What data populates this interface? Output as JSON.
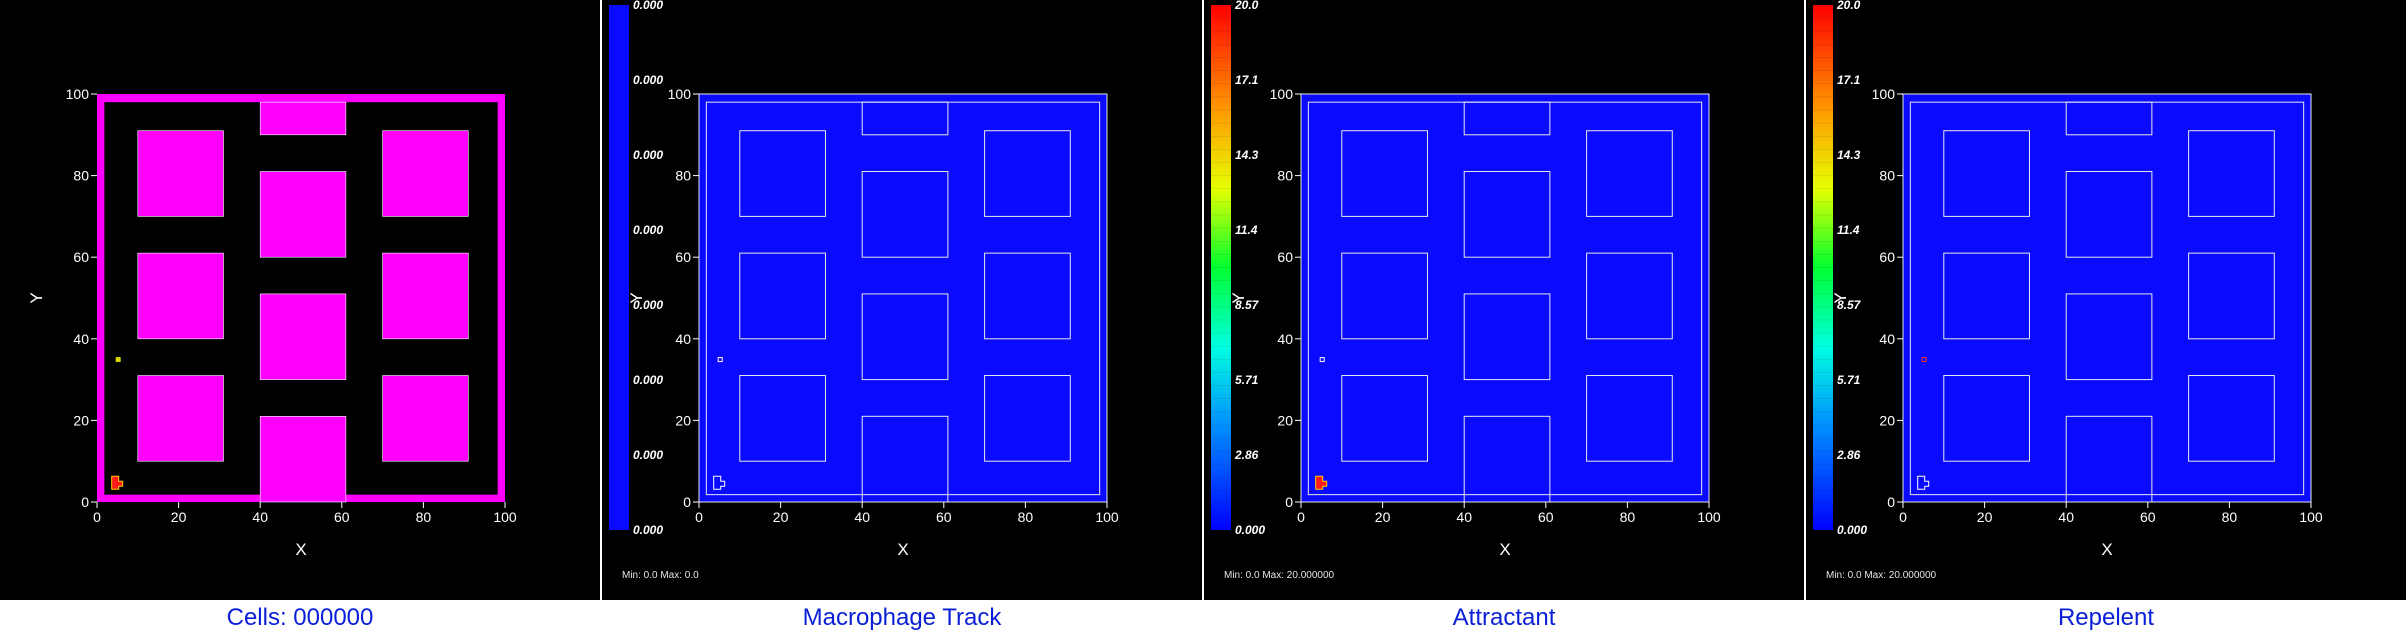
{
  "panels": [
    {
      "id": "cells",
      "caption": "Cells: 000000",
      "variant": "cells",
      "colorbar": null,
      "minmax": "",
      "xlabel": "X",
      "ylabel": "Y"
    },
    {
      "id": "macrophage-track",
      "caption": "Macrophage Track",
      "variant": "field",
      "colorbar": {
        "type": "solid",
        "labels": [
          "0.000",
          "0.000",
          "0.000",
          "0.000",
          "0.000",
          "0.000",
          "0.000",
          "0.000"
        ]
      },
      "minmax": "Min: 0.0 Max: 0.0",
      "xlabel": "X",
      "ylabel": "Y"
    },
    {
      "id": "attractant",
      "caption": "Attractant",
      "variant": "field",
      "colorbar": {
        "type": "gradient",
        "labels": [
          "20.0",
          "17.1",
          "14.3",
          "11.4",
          "8.57",
          "5.71",
          "2.86",
          "0.000"
        ]
      },
      "minmax": "Min: 0.0 Max: 20.000000",
      "xlabel": "X",
      "ylabel": "Y"
    },
    {
      "id": "repelent",
      "caption": "Repelent",
      "variant": "field",
      "colorbar": {
        "type": "gradient",
        "labels": [
          "20.0",
          "17.1",
          "14.3",
          "11.4",
          "8.57",
          "5.71",
          "2.86",
          "0.000"
        ]
      },
      "minmax": "Min: 0.0 Max: 20.000000",
      "xlabel": "X",
      "ylabel": "Y"
    }
  ],
  "axis": {
    "xticks": [
      "0",
      "20",
      "40",
      "60",
      "80",
      "100"
    ],
    "yticks": [
      "0",
      "20",
      "40",
      "60",
      "80",
      "100"
    ],
    "xlim": [
      0,
      100
    ],
    "ylim": [
      0,
      100
    ]
  },
  "obstacles": [
    {
      "x0": 10,
      "x1": 31,
      "y0": 70,
      "y1": 91
    },
    {
      "x0": 70,
      "x1": 91,
      "y0": 70,
      "y1": 91
    },
    {
      "x0": 10,
      "x1": 31,
      "y0": 40,
      "y1": 61
    },
    {
      "x0": 70,
      "x1": 91,
      "y0": 40,
      "y1": 61
    },
    {
      "x0": 10,
      "x1": 31,
      "y0": 10,
      "y1": 31
    },
    {
      "x0": 70,
      "x1": 91,
      "y0": 10,
      "y1": 31
    },
    {
      "x0": 40,
      "x1": 61,
      "y0": 60,
      "y1": 81
    },
    {
      "x0": 40,
      "x1": 61,
      "y0": 30,
      "y1": 51
    },
    {
      "x0": 40,
      "x1": 61,
      "y0": 0,
      "y1": 21
    },
    {
      "x0": 40,
      "x1": 61,
      "y0": 90,
      "y1": 98
    }
  ],
  "colors": {
    "panel_bg": "#000000",
    "field": "#0a0aff",
    "cell_fill": "#ff00ff",
    "line": "#e8e8e8",
    "caption": "#0a1fd6"
  }
}
